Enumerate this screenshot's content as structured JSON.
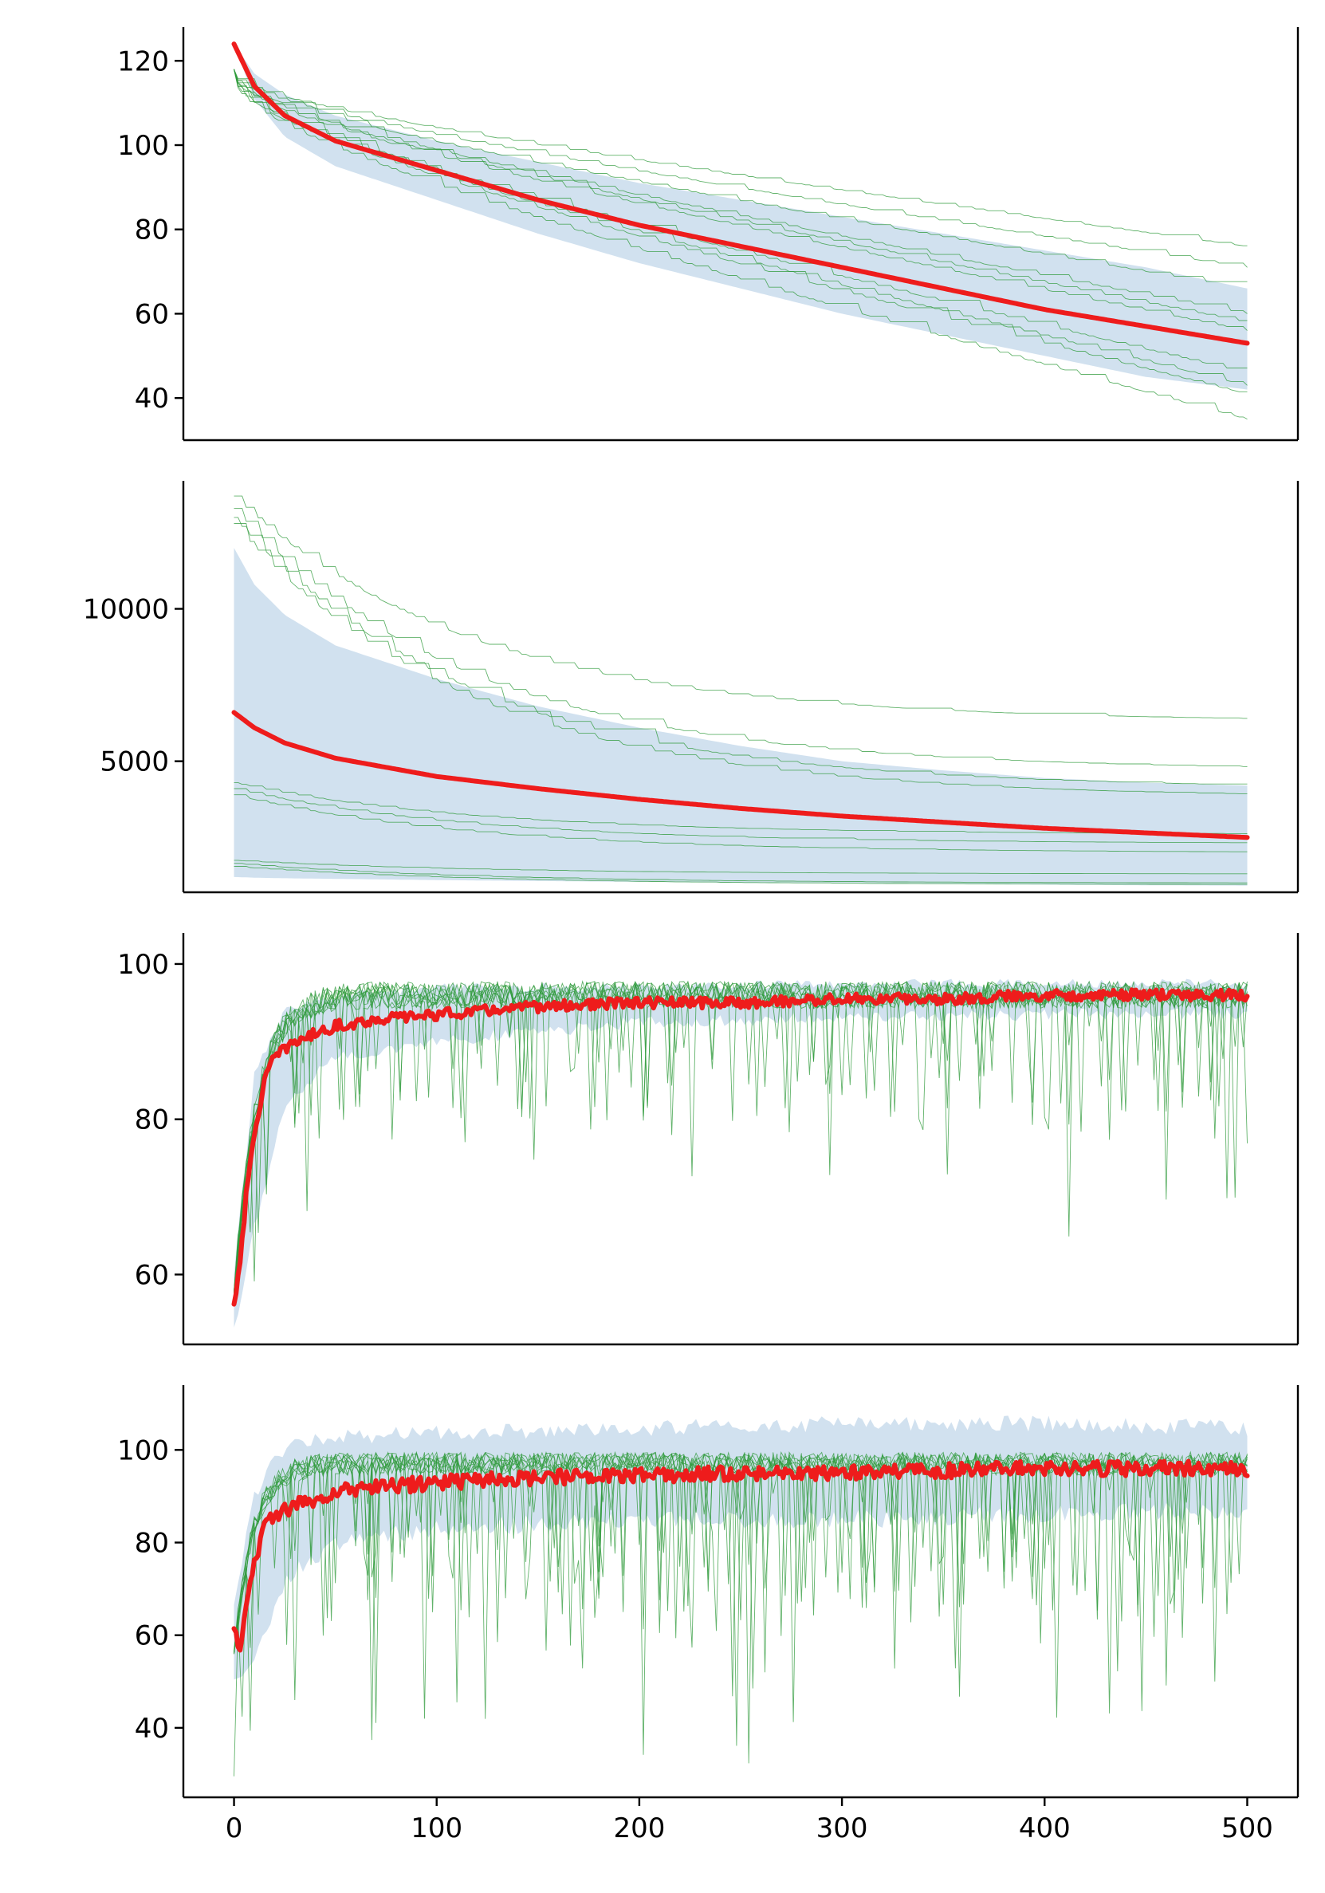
{
  "figure": {
    "colors": {
      "mean_line": "#ee1c1c",
      "band_fill": "#c5d9eb",
      "run_lines": "#2e9a3a",
      "axes": "#000000"
    },
    "shared_x_tick_labels": [
      "0",
      "100",
      "200",
      "300",
      "400",
      "500"
    ]
  },
  "chart_data": [
    {
      "type": "line",
      "title": "",
      "xlabel": "",
      "ylabel": "",
      "xlim": [
        -25,
        525
      ],
      "ylim": [
        30,
        128
      ],
      "x_ticks": [],
      "y_ticks": [
        40,
        60,
        80,
        100,
        120
      ],
      "y_tick_labels": [
        "40",
        "60",
        "80",
        "100",
        "120"
      ],
      "grid": false,
      "legend": "none",
      "series": [
        {
          "role": "mean",
          "x": [
            0,
            10,
            25,
            50,
            100,
            150,
            200,
            250,
            300,
            350,
            400,
            450,
            500
          ],
          "values": [
            124,
            114,
            107,
            101,
            94,
            87,
            81,
            76,
            71,
            66,
            61,
            57,
            53
          ]
        }
      ],
      "band": {
        "x": [
          0,
          10,
          25,
          50,
          100,
          150,
          200,
          250,
          300,
          350,
          400,
          450,
          500
        ],
        "upper": [
          124,
          117,
          112,
          107,
          101,
          96,
          91,
          87,
          83,
          79,
          75,
          71,
          66
        ],
        "lower": [
          124,
          111,
          102,
          95,
          87,
          79,
          72,
          66,
          60,
          55,
          50,
          45,
          42
        ]
      },
      "runs": {
        "count": 10,
        "start": 118,
        "end_values": [
          76,
          71,
          66,
          60,
          58,
          56,
          46,
          43,
          41,
          35
        ],
        "style": "stepped, decreasing"
      }
    },
    {
      "type": "line",
      "title": "",
      "xlabel": "",
      "ylabel": "",
      "xlim": [
        -25,
        525
      ],
      "ylim": [
        700,
        14200
      ],
      "x_ticks": [],
      "y_ticks": [
        5000,
        10000
      ],
      "y_tick_labels": [
        "5000",
        "10000"
      ],
      "grid": false,
      "legend": "none",
      "series": [
        {
          "role": "mean",
          "x": [
            0,
            10,
            25,
            50,
            100,
            150,
            200,
            250,
            300,
            350,
            400,
            450,
            500
          ],
          "values": [
            6600,
            6100,
            5600,
            5100,
            4500,
            4100,
            3750,
            3450,
            3200,
            3000,
            2800,
            2650,
            2500
          ]
        }
      ],
      "band": {
        "x": [
          0,
          10,
          25,
          50,
          100,
          150,
          200,
          250,
          300,
          350,
          400,
          450,
          500
        ],
        "upper": [
          12000,
          10800,
          9800,
          8800,
          7700,
          6800,
          6100,
          5500,
          5000,
          4700,
          4450,
          4300,
          4200
        ],
        "lower": [
          1200,
          1180,
          1160,
          1140,
          1100,
          1070,
          1040,
          1010,
          990,
          970,
          950,
          930,
          920
        ]
      },
      "runs": {
        "count": 10,
        "start_values": [
          13700,
          13300,
          13000,
          12800,
          4300,
          4100,
          3900,
          1750,
          1650,
          1550
        ],
        "end_values": [
          6300,
          4700,
          4100,
          3800,
          2600,
          2300,
          2000,
          1300,
          1000,
          950
        ],
        "style": "stepped, decreasing"
      }
    },
    {
      "type": "line",
      "title": "",
      "xlabel": "",
      "ylabel": "",
      "xlim": [
        -25,
        525
      ],
      "ylim": [
        51,
        104
      ],
      "x_ticks": [],
      "y_ticks": [
        60,
        80,
        100
      ],
      "y_tick_labels": [
        "60",
        "80",
        "100"
      ],
      "grid": false,
      "legend": "none",
      "series": [
        {
          "role": "mean",
          "x": [
            0,
            3,
            6,
            10,
            15,
            20,
            30,
            50,
            75,
            100,
            150,
            200,
            250,
            300,
            350,
            400,
            450,
            500
          ],
          "values": [
            56,
            62,
            70,
            78,
            85,
            88,
            90,
            92,
            93,
            93.5,
            94.5,
            95,
            95,
            95.5,
            95.5,
            96,
            96,
            96
          ]
        }
      ],
      "band": {
        "x": [
          0,
          10,
          25,
          50,
          100,
          200,
          300,
          400,
          500
        ],
        "upper": [
          60,
          86,
          94,
          96,
          97,
          97,
          97.5,
          97.5,
          97.5
        ],
        "lower": [
          53,
          66,
          82,
          88,
          90,
          92.5,
          93,
          93.5,
          93.5
        ]
      },
      "runs": {
        "count": 10,
        "plateau": [
          94,
          98
        ],
        "dips_down_to": 72,
        "style": "noisy, rising then plateau"
      }
    },
    {
      "type": "line",
      "title": "",
      "xlabel": "",
      "ylabel": "",
      "xlim": [
        -25,
        525
      ],
      "ylim": [
        25,
        114
      ],
      "x_ticks": [
        0,
        100,
        200,
        300,
        400,
        500
      ],
      "y_ticks": [
        40,
        60,
        80,
        100
      ],
      "y_tick_labels": [
        "40",
        "60",
        "80",
        "100"
      ],
      "grid": false,
      "legend": "none",
      "series": [
        {
          "role": "mean",
          "x": [
            0,
            3,
            6,
            10,
            15,
            20,
            30,
            50,
            75,
            100,
            150,
            200,
            250,
            300,
            350,
            400,
            450,
            500
          ],
          "values": [
            61,
            57,
            68,
            76,
            83,
            86,
            88,
            91,
            92,
            93,
            94,
            94.5,
            95,
            95,
            95.5,
            96,
            96,
            96
          ]
        }
      ],
      "band": {
        "x": [
          0,
          10,
          25,
          50,
          100,
          200,
          300,
          400,
          500
        ],
        "upper": [
          66,
          90,
          100,
          102,
          103,
          104,
          105,
          105,
          104
        ],
        "lower": [
          50,
          55,
          72,
          80,
          83,
          85,
          85,
          86,
          87
        ]
      },
      "runs": {
        "count": 10,
        "plateau": [
          95,
          99
        ],
        "dips_down_to": 28,
        "style": "very noisy, rising then plateau"
      }
    }
  ]
}
